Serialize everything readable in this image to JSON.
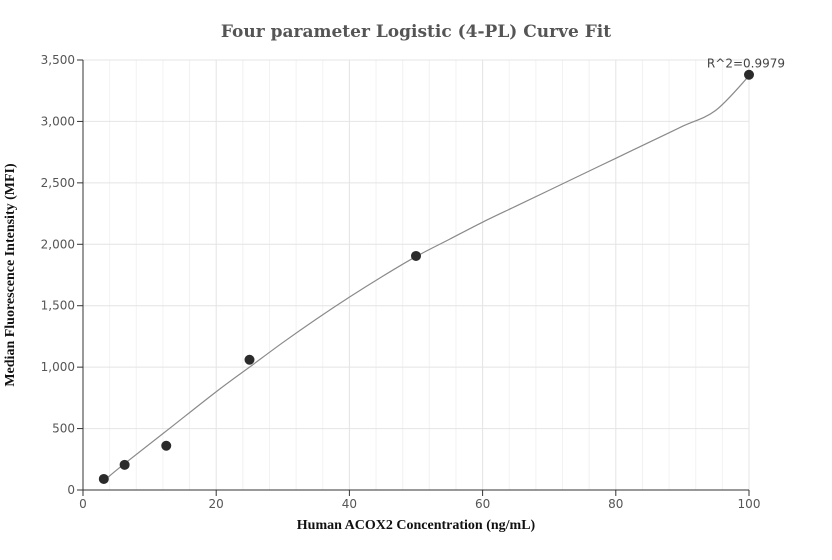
{
  "chart_data": {
    "type": "scatter",
    "title": "Four parameter Logistic (4-PL) Curve Fit",
    "xlabel": "Human ACOX2 Concentration (ng/mL)",
    "ylabel": "Median Fluorescence Intensity (MFI)",
    "xlim": [
      0,
      100
    ],
    "ylim": [
      0,
      3500
    ],
    "x_ticks": [
      0,
      20,
      40,
      60,
      80,
      100
    ],
    "y_ticks": [
      0,
      500,
      1000,
      1500,
      2000,
      2500,
      3000,
      3500
    ],
    "x_tick_labels": [
      "0",
      "20",
      "40",
      "60",
      "80",
      "100"
    ],
    "y_tick_labels": [
      "0",
      "500",
      "1,000",
      "1,500",
      "2,000",
      "2,500",
      "3,000",
      "3,500"
    ],
    "grid": true,
    "annotation": "R^2=0.9979",
    "points": [
      {
        "x": 3.125,
        "y": 90
      },
      {
        "x": 6.25,
        "y": 205
      },
      {
        "x": 12.5,
        "y": 360
      },
      {
        "x": 25,
        "y": 1060
      },
      {
        "x": 50,
        "y": 1905
      },
      {
        "x": 100,
        "y": 3380
      }
    ],
    "fit_curve": {
      "x": [
        3.125,
        6.25,
        12.5,
        20,
        25,
        30,
        35,
        40,
        45,
        50,
        55,
        60,
        65,
        70,
        75,
        80,
        85,
        90,
        95,
        100
      ],
      "y": [
        75,
        215,
        480,
        800,
        1000,
        1200,
        1390,
        1570,
        1740,
        1900,
        2040,
        2180,
        2310,
        2440,
        2570,
        2700,
        2830,
        2960,
        3090,
        3370
      ]
    },
    "colors": {
      "point": "#2b2b2b",
      "curve": "#8a8a8a",
      "grid_major": "#e4e4e4",
      "grid_minor": "#f2f2f2",
      "axis": "#333333"
    }
  }
}
